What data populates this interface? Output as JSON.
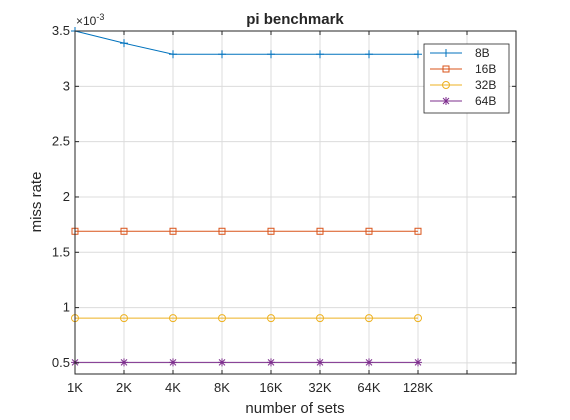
{
  "chart_data": {
    "type": "line",
    "title": "pi benchmark",
    "xlabel": "number of sets",
    "ylabel": "miss rate",
    "y_exponent": "×10",
    "y_exponent_power": "-3",
    "categories": [
      "1K",
      "2K",
      "4K",
      "8K",
      "16K",
      "32K",
      "64K",
      "128K"
    ],
    "xlim": [
      0,
      9
    ],
    "ylim": [
      0.4,
      3.5
    ],
    "yticks": [
      0.5,
      1,
      1.5,
      2,
      2.5,
      3,
      3.5
    ],
    "ytick_labels": [
      "0.5",
      "1",
      "1.5",
      "2",
      "2.5",
      "3",
      "3.5"
    ],
    "grid": true,
    "legend_position": "top-right",
    "series": [
      {
        "name": "8B",
        "color": "#0072BD",
        "marker": "plus",
        "values": [
          3.5,
          3.39,
          3.29,
          3.29,
          3.29,
          3.29,
          3.29,
          3.29
        ]
      },
      {
        "name": "16B",
        "color": "#D95319",
        "marker": "square",
        "values": [
          1.69,
          1.69,
          1.69,
          1.69,
          1.69,
          1.69,
          1.69,
          1.69
        ]
      },
      {
        "name": "32B",
        "color": "#EDB120",
        "marker": "circle",
        "values": [
          0.905,
          0.905,
          0.905,
          0.905,
          0.905,
          0.905,
          0.905,
          0.905
        ]
      },
      {
        "name": "64B",
        "color": "#7E2F8E",
        "marker": "asterisk",
        "values": [
          0.505,
          0.505,
          0.505,
          0.505,
          0.505,
          0.505,
          0.505,
          0.505
        ]
      }
    ]
  }
}
